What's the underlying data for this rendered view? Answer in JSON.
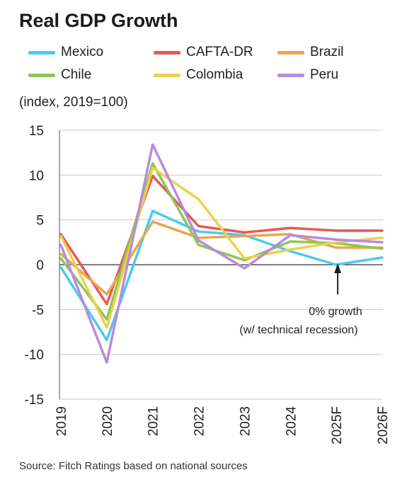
{
  "title": "Real GDP Growth",
  "subtitle": "(index, 2019=100)",
  "source": "Source: Fitch Ratings based on national sources",
  "chart_data": {
    "type": "line",
    "title": "Real GDP Growth",
    "ylabel": "(index, 2019=100)",
    "categories": [
      "2019",
      "2020",
      "2021",
      "2022",
      "2023",
      "2024",
      "2025F",
      "2026F"
    ],
    "ylim": [
      -15,
      15
    ],
    "yticks": [
      15,
      10,
      5,
      0,
      -5,
      -10,
      -15
    ],
    "grid": "horizontal",
    "legend_position": "top",
    "series": [
      {
        "name": "Mexico",
        "color": "#4dc8f0",
        "values": [
          -0.3,
          -8.4,
          6.0,
          3.7,
          3.3,
          1.5,
          0.0,
          0.8
        ]
      },
      {
        "name": "CAFTA-DR",
        "color": "#e35b55",
        "values": [
          3.4,
          -4.4,
          9.9,
          4.3,
          3.6,
          4.1,
          3.8,
          3.8
        ]
      },
      {
        "name": "Brazil",
        "color": "#e8a550",
        "values": [
          1.2,
          -3.3,
          4.8,
          3.0,
          3.2,
          3.4,
          1.9,
          1.9
        ]
      },
      {
        "name": "Chile",
        "color": "#8cc657",
        "values": [
          0.7,
          -6.1,
          11.3,
          2.2,
          0.5,
          2.6,
          2.4,
          1.8
        ]
      },
      {
        "name": "Colombia",
        "color": "#ecd04e",
        "values": [
          3.2,
          -7.0,
          10.8,
          7.3,
          0.7,
          1.7,
          2.5,
          3.0
        ]
      },
      {
        "name": "Peru",
        "color": "#b98add",
        "values": [
          2.2,
          -10.9,
          13.4,
          2.7,
          -0.4,
          3.3,
          2.8,
          2.5
        ]
      }
    ],
    "annotation": {
      "line1": "0% growth",
      "line2": "(w/ technical recession)",
      "category": "2025F",
      "value": 0
    }
  },
  "colors": {
    "axis": "#000000",
    "grid": "#c8c8c8"
  }
}
